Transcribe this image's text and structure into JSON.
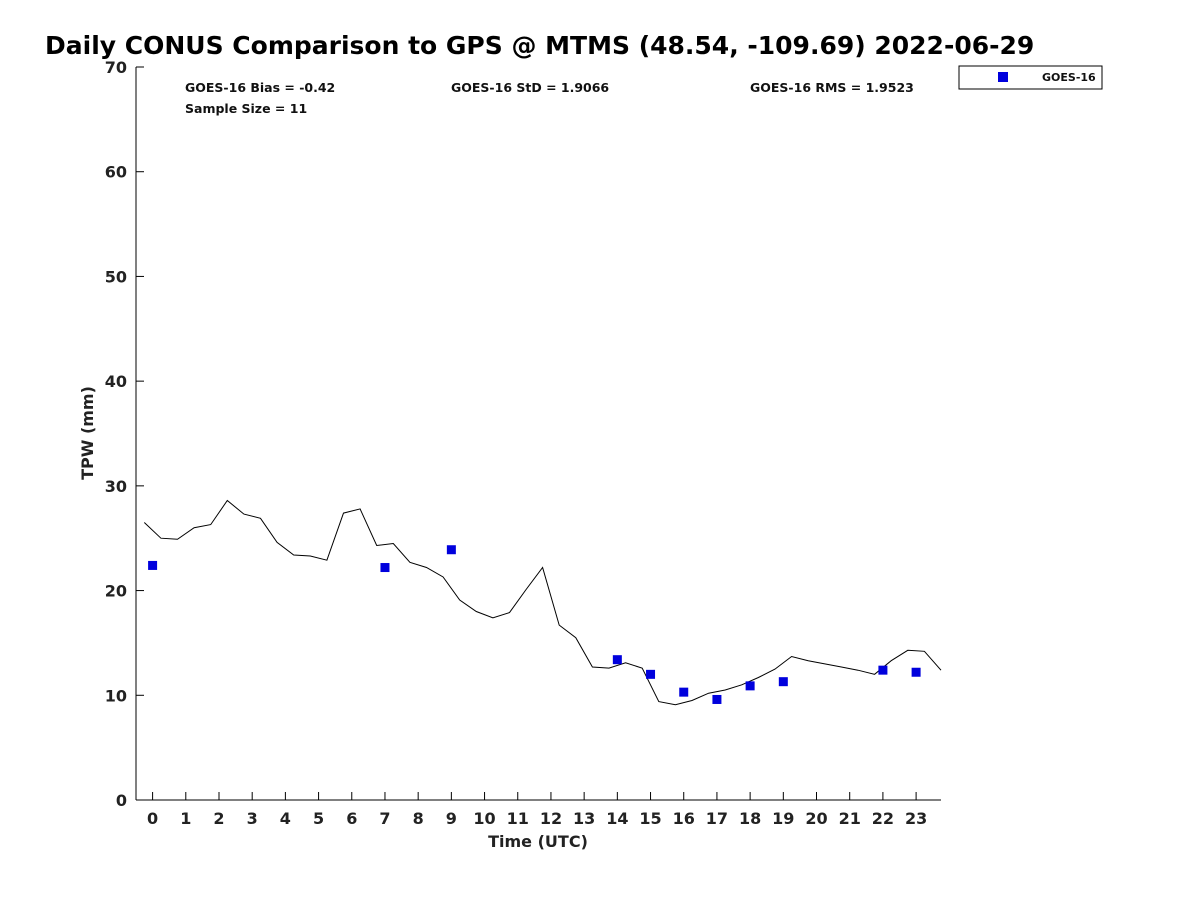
{
  "chart_data": {
    "type": "scatter",
    "title": "Daily CONUS Comparison to GPS @ MTMS (48.54, -109.69) 2022-06-29",
    "xlabel": "Time (UTC)",
    "ylabel": "TPW (mm)",
    "xlim": [
      -0.5,
      23.75
    ],
    "ylim": [
      0,
      70
    ],
    "x_ticks": [
      0,
      1,
      2,
      3,
      4,
      5,
      6,
      7,
      8,
      9,
      10,
      11,
      12,
      13,
      14,
      15,
      16,
      17,
      18,
      19,
      20,
      21,
      22,
      23
    ],
    "y_ticks": [
      0,
      10,
      20,
      30,
      40,
      50,
      60,
      70
    ],
    "grid": false,
    "legend_position": "top-right outside",
    "stats": {
      "bias": "GOES-16 Bias = -0.42",
      "sample_size": "Sample Size = 11",
      "std": "GOES-16 StD = 1.9066",
      "rms": "GOES-16 RMS = 1.9523"
    },
    "series": [
      {
        "name": "GOES-16",
        "kind": "scatter",
        "color": "#0000dd",
        "marker": "square",
        "x": [
          0,
          7,
          9,
          14,
          15,
          16,
          17,
          18,
          19,
          22,
          23
        ],
        "y": [
          22.4,
          22.2,
          23.9,
          13.4,
          12.0,
          10.3,
          9.6,
          10.9,
          11.3,
          12.4,
          12.2
        ]
      },
      {
        "kind": "line",
        "color": "#000000",
        "x": [
          -0.25,
          0.25,
          0.75,
          1.25,
          1.75,
          2.25,
          2.75,
          3.25,
          3.75,
          4.25,
          4.75,
          5.25,
          5.75,
          6.25,
          6.75,
          7.25,
          7.75,
          8.25,
          8.75,
          9.25,
          9.75,
          10.25,
          10.75,
          11.25,
          11.75,
          12.25,
          12.75,
          13.25,
          13.75,
          14.25,
          14.75,
          15.25,
          15.75,
          16.25,
          16.75,
          17.25,
          17.75,
          18.25,
          18.75,
          19.25,
          19.75,
          20.25,
          20.75,
          21.25,
          21.75,
          22.25,
          22.75,
          23.25,
          23.75
        ],
        "y": [
          26.5,
          25.0,
          24.9,
          26.0,
          26.3,
          28.6,
          27.3,
          26.9,
          24.6,
          23.4,
          23.3,
          22.9,
          27.4,
          27.8,
          24.3,
          24.5,
          22.7,
          22.2,
          21.3,
          19.1,
          18.0,
          17.4,
          17.9,
          20.1,
          22.2,
          16.7,
          15.5,
          12.7,
          12.6,
          13.1,
          12.6,
          9.4,
          9.1,
          9.5,
          10.2,
          10.5,
          11.0,
          11.7,
          12.5,
          13.7,
          13.3,
          13.0,
          12.7,
          12.4,
          12.0,
          13.3,
          14.3,
          14.2,
          12.4
        ]
      }
    ]
  }
}
